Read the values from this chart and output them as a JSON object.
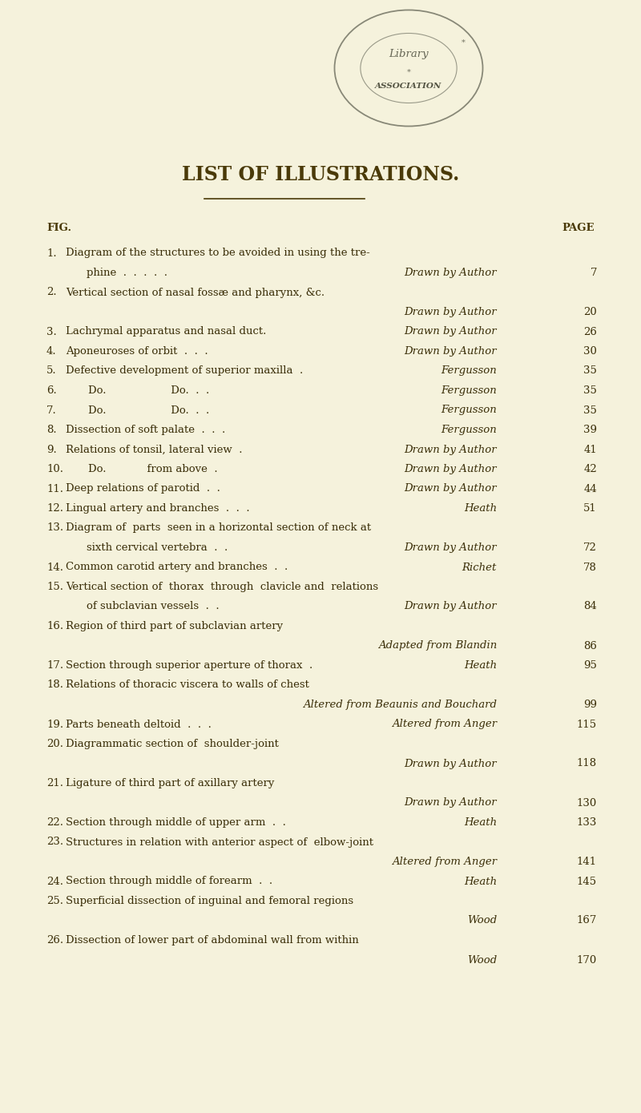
{
  "bg_color": "#f5f2dc",
  "title": "LIST OF ILLUSTRATIONS.",
  "title_color": "#4a3a08",
  "text_color": "#3a2e08",
  "italic_color": "#3a2e08",
  "title_fontsize": 17,
  "header_fontsize": 9.5,
  "body_fontsize": 9.5,
  "entries": [
    {
      "num": "1.",
      "line1": "Diagram of the structures to be avoided in using the tre-",
      "line2": "phine  .  .  .  .  .",
      "source": "Drawn by Author",
      "page": "7",
      "source_inline": false,
      "two_lines": true
    },
    {
      "num": "2.",
      "line1": "Vertical section of nasal fossæ and pharynx, &c.",
      "line2": null,
      "source": "Drawn by Author",
      "page": "20",
      "source_inline": false,
      "two_lines": false
    },
    {
      "num": "3.",
      "line1": "Lachrymal apparatus and nasal duct.",
      "line2": null,
      "source": "Drawn by Author",
      "page": "26",
      "source_inline": true,
      "two_lines": false
    },
    {
      "num": "4.",
      "line1": "Aponeuroses of orbit  .  .  .",
      "line2": null,
      "source": "Drawn by Author",
      "page": "30",
      "source_inline": true,
      "two_lines": false
    },
    {
      "num": "5.",
      "line1": "Defective development of superior maxilla  .",
      "line2": null,
      "source": "Fergusson",
      "page": "35",
      "source_inline": true,
      "two_lines": false
    },
    {
      "num": "6.",
      "line1": "Do.                   Do.  .  .",
      "line2": null,
      "source": "Fergusson",
      "page": "35",
      "source_inline": true,
      "two_lines": false,
      "indent": true
    },
    {
      "num": "7.",
      "line1": "Do.                   Do.  .  .",
      "line2": null,
      "source": "Fergusson",
      "page": "35",
      "source_inline": true,
      "two_lines": false,
      "indent": true
    },
    {
      "num": "8.",
      "line1": "Dissection of soft palate  .  .  .",
      "line2": null,
      "source": "Fergusson",
      "page": "39",
      "source_inline": true,
      "two_lines": false
    },
    {
      "num": "9.",
      "line1": "Relations of tonsil, lateral view  .",
      "line2": null,
      "source": "Drawn by Author",
      "page": "41",
      "source_inline": true,
      "two_lines": false
    },
    {
      "num": "10.",
      "line1": "Do.            from above  .",
      "line2": null,
      "source": "Drawn by Author",
      "page": "42",
      "source_inline": true,
      "two_lines": false,
      "indent": true
    },
    {
      "num": "11.",
      "line1": "Deep relations of parotid  .  .",
      "line2": null,
      "source": "Drawn by Author",
      "page": "44",
      "source_inline": true,
      "two_lines": false
    },
    {
      "num": "12.",
      "line1": "Lingual artery and branches  .  .  .",
      "line2": null,
      "source": "Heath",
      "page": "51",
      "source_inline": true,
      "two_lines": false
    },
    {
      "num": "13.",
      "line1": "Diagram of  parts  seen in a horizontal section of neck at",
      "line2": "sixth cervical vertebra  .  .",
      "source": "Drawn by Author",
      "page": "72",
      "source_inline": false,
      "two_lines": true
    },
    {
      "num": "14.",
      "line1": "Common carotid artery and branches  .  .",
      "line2": null,
      "source": "Richet",
      "page": "78",
      "source_inline": true,
      "two_lines": false
    },
    {
      "num": "15.",
      "line1": "Vertical section of  thorax  through  clavicle and  relations",
      "line2": "of subclavian vessels  .  .",
      "source": "Drawn by Author",
      "page": "84",
      "source_inline": false,
      "two_lines": true
    },
    {
      "num": "16.",
      "line1": "Region of third part of subclavian artery",
      "line2": null,
      "source": "Adapted from Blandin",
      "page": "86",
      "source_inline": false,
      "two_lines": false
    },
    {
      "num": "17.",
      "line1": "Section through superior aperture of thorax  .",
      "line2": null,
      "source": "Heath",
      "page": "95",
      "source_inline": true,
      "two_lines": false
    },
    {
      "num": "18.",
      "line1": "Relations of thoracic viscera to walls of chest",
      "line2": null,
      "source": "Altered from Beaunis and Bouchard",
      "page": "99",
      "source_inline": false,
      "two_lines": false
    },
    {
      "num": "19.",
      "line1": "Parts beneath deltoid  .  .  .",
      "line2": null,
      "source": "Altered from Anger",
      "page": "115",
      "source_inline": true,
      "two_lines": false
    },
    {
      "num": "20.",
      "line1": "Diagrammatic section of  shoulder-joint",
      "line2": null,
      "source": "Drawn by Author",
      "page": "118",
      "source_inline": false,
      "two_lines": false
    },
    {
      "num": "21.",
      "line1": "Ligature of third part of axillary artery",
      "line2": null,
      "source": "Drawn by Author",
      "page": "130",
      "source_inline": false,
      "two_lines": false
    },
    {
      "num": "22.",
      "line1": "Section through middle of upper arm  .  .",
      "line2": null,
      "source": "Heath",
      "page": "133",
      "source_inline": true,
      "two_lines": false
    },
    {
      "num": "23.",
      "line1": "Structures in relation with anterior aspect of  elbow-joint",
      "line2": null,
      "source": "Altered from Anger",
      "page": "141",
      "source_inline": false,
      "two_lines": false
    },
    {
      "num": "24.",
      "line1": "Section through middle of forearm  .  .",
      "line2": null,
      "source": "Heath",
      "page": "145",
      "source_inline": true,
      "two_lines": false
    },
    {
      "num": "25.",
      "line1": "Superficial dissection of inguinal and femoral regions",
      "line2": null,
      "source": "Wood",
      "page": "167",
      "source_inline": false,
      "two_lines": false
    },
    {
      "num": "26.",
      "line1": "Dissection of lower part of abdominal wall from within",
      "line2": null,
      "source": "Wood",
      "page": "170",
      "source_inline": false,
      "two_lines": false
    }
  ]
}
